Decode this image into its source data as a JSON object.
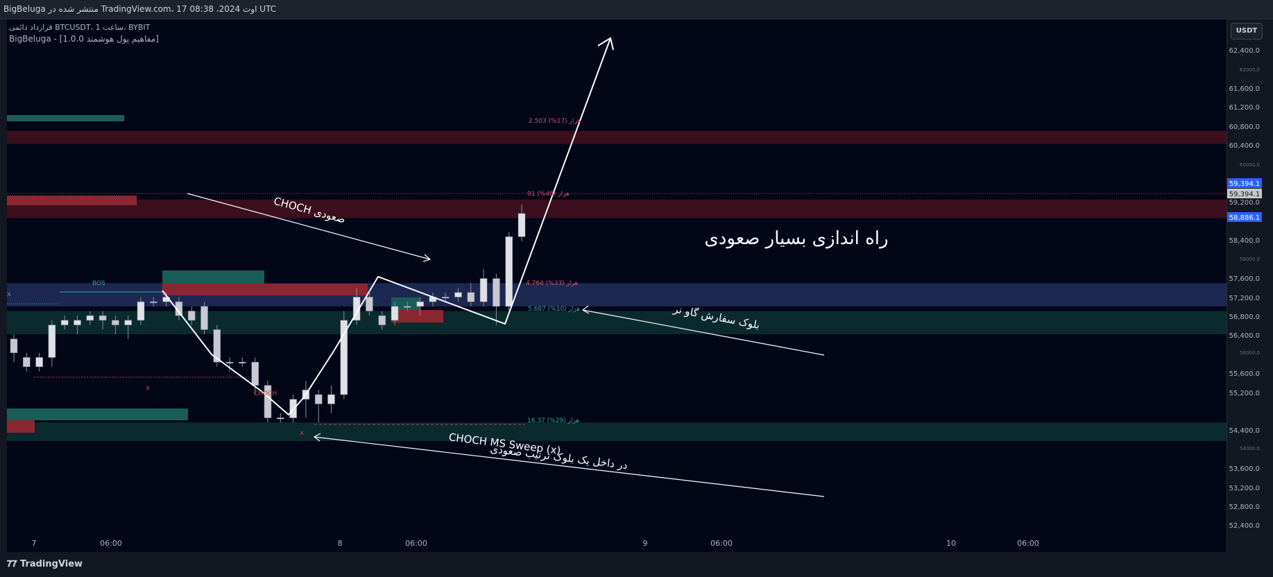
{
  "header": {
    "text": "BigBeluga منتشر شده در TradingView.com، 17 اوت 2024، 08:38 UTC"
  },
  "legend": {
    "symbol_line": "قرارداد دائمی BTCUSDT، 1 ساعت، BYBIT",
    "indicator_line": "BigBeluga - [مفاهیم پول هوشمند 1.0.0]"
  },
  "currency_button": "USDT",
  "footer": {
    "logo": "TradingView"
  },
  "annotations": {
    "headline": "راه اندازی بسیار صعودی",
    "choch_label": "CHOCH صعودی",
    "bull_ob_label": "بلوک سفارش گاو نر",
    "sweep_line1": "CHOCH MS Sweep (x)",
    "sweep_line2": "در داخل یک بلوک ترتیب صعودی",
    "bos": "BOS",
    "choch_small": "CHOCH",
    "zone_labels": [
      "2.503 هزار (17%)",
      "91 هزار (46%)",
      "4.764 هزار (33%)",
      "5.687 هزار (10%)",
      "16.37 هزار (29%)"
    ]
  },
  "price_badges": {
    "blue_top": "59,394.1",
    "grey": "59,394.1",
    "blue_bottom": "58,886.1"
  },
  "chart_data": {
    "type": "candlestick",
    "y_axis": {
      "ylim": [
        52000,
        63200
      ],
      "tick_labels": [
        "62,400.0",
        "61,600.0",
        "61,200.0",
        "60,800.0",
        "60,400.0",
        "59,200.0",
        "58,400.0",
        "57,600.0",
        "57,200.0",
        "56,800.0",
        "56,400.0",
        "55,600.0",
        "55,200.0",
        "54,400.0",
        "53,600.0",
        "53,200.0",
        "52,800.0",
        "52,400.0"
      ],
      "minor_tick_labels": [
        "62000.0",
        "60000.0",
        "58000.0",
        "56000.0",
        "54000.0"
      ]
    },
    "x_axis": {
      "tick_labels": [
        "7",
        "06:00",
        "8",
        "06:00",
        "9",
        "06:00",
        "10",
        "06:00"
      ]
    },
    "candles": [
      [
        56500,
        56200,
        56600,
        56000
      ],
      [
        56100,
        55900,
        56200,
        55800
      ],
      [
        55900,
        56100,
        56200,
        55800
      ],
      [
        56100,
        56800,
        56900,
        55900
      ],
      [
        56800,
        56900,
        57000,
        56700
      ],
      [
        56800,
        56900,
        57000,
        56600
      ],
      [
        56900,
        57000,
        57100,
        56800
      ],
      [
        57000,
        56900,
        57100,
        56700
      ],
      [
        56900,
        56800,
        57000,
        56600
      ],
      [
        56800,
        56900,
        57000,
        56500
      ],
      [
        56900,
        57300,
        57400,
        56800
      ],
      [
        57300,
        57300,
        57400,
        57200
      ],
      [
        57300,
        57400,
        57500,
        57200
      ],
      [
        57300,
        57000,
        57400,
        56900
      ],
      [
        57100,
        56900,
        57200,
        56800
      ],
      [
        57200,
        56700,
        57300,
        56600
      ],
      [
        56700,
        56000,
        56800,
        55900
      ],
      [
        56000,
        56000,
        56100,
        55800
      ],
      [
        56000,
        56000,
        56100,
        55900
      ],
      [
        56000,
        55500,
        56100,
        55300
      ],
      [
        55500,
        54800,
        55600,
        54700
      ],
      [
        54800,
        54800,
        54900,
        54700
      ],
      [
        54800,
        55200,
        55300,
        54700
      ],
      [
        55200,
        55400,
        55600,
        54800
      ],
      [
        55300,
        55100,
        55400,
        54700
      ],
      [
        55100,
        55300,
        55500,
        54900
      ],
      [
        55300,
        56900,
        57100,
        55200
      ],
      [
        56900,
        57400,
        57600,
        56800
      ],
      [
        57400,
        57100,
        57500,
        57000
      ],
      [
        57000,
        56800,
        57100,
        56700
      ],
      [
        56900,
        57200,
        57300,
        56800
      ],
      [
        57200,
        57200,
        57300,
        57100
      ],
      [
        57200,
        57300,
        57400,
        57000
      ],
      [
        57300,
        57400,
        57500,
        57200
      ],
      [
        57400,
        57400,
        57500,
        57300
      ],
      [
        57400,
        57500,
        57600,
        57300
      ],
      [
        57500,
        57300,
        57700,
        57200
      ],
      [
        57300,
        57800,
        58000,
        57200
      ],
      [
        57800,
        57200,
        57900,
        56800
      ],
      [
        57200,
        58700,
        58800,
        57100
      ],
      [
        58700,
        59200,
        59400,
        58600
      ]
    ],
    "zones": [
      {
        "low": 60700,
        "high": 60980,
        "color": "#3b0f1e"
      },
      {
        "low": 59100,
        "high": 59500,
        "color": "#3b0f1e"
      },
      {
        "low": 57200,
        "high": 57700,
        "color": "#1c2852"
      },
      {
        "low": 56600,
        "high": 57100,
        "color": "#0a2a2e"
      },
      {
        "low": 54300,
        "high": 54700,
        "color": "#0a2a2e"
      }
    ],
    "colors": {
      "up": "#e0e0e8",
      "down": "#c8c8d0",
      "bull_ob": "#1a5d57",
      "bear_ob": "#8c2632",
      "line": "#ffffff"
    }
  }
}
